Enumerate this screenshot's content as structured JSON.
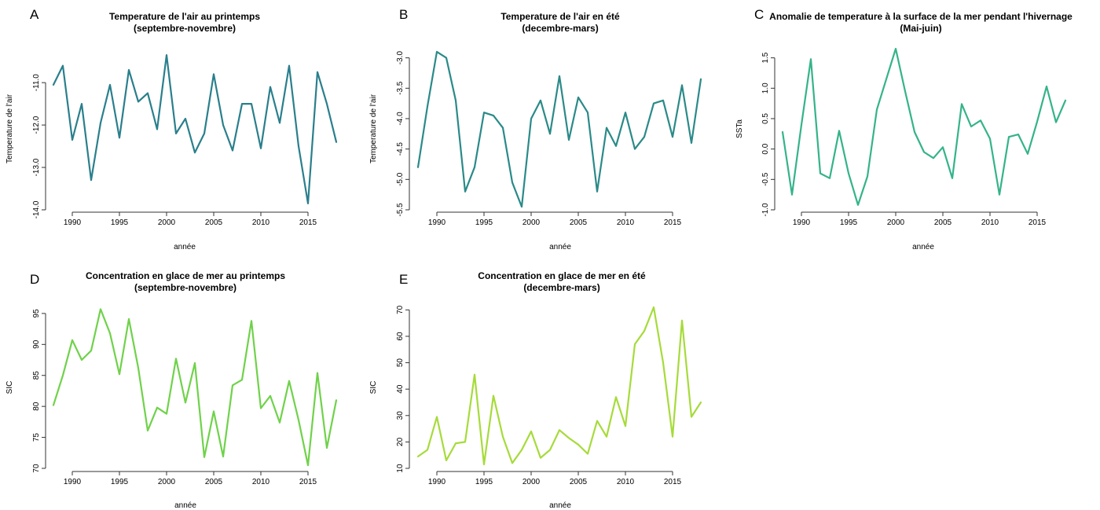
{
  "chart_data": [
    {
      "type": "line",
      "panel": "A",
      "title": "Temperature de l'air au printemps",
      "subtitle": "(septembre-novembre)",
      "xlabel": "année",
      "ylabel": "Temperature de l'air",
      "color": "#2a7f8c",
      "xlim": [
        1988,
        2018
      ],
      "ylim": [
        -14.0,
        -10.2
      ],
      "xticks": [
        1990,
        1995,
        2000,
        2005,
        2010,
        2015
      ],
      "yticks": [
        -14.0,
        -13.0,
        -12.0,
        -11.0
      ],
      "ytick_labels": [
        "-14.0",
        "-13.0",
        "-12.0",
        "-11.0"
      ],
      "x": [
        1988,
        1989,
        1990,
        1991,
        1992,
        1993,
        1994,
        1995,
        1996,
        1997,
        1998,
        1999,
        2000,
        2001,
        2002,
        2003,
        2004,
        2005,
        2006,
        2007,
        2008,
        2009,
        2010,
        2011,
        2012,
        2013,
        2014,
        2015,
        2016,
        2017,
        2018
      ],
      "values": [
        -11.05,
        -10.6,
        -12.35,
        -11.5,
        -13.3,
        -11.95,
        -11.05,
        -12.3,
        -10.7,
        -11.45,
        -11.25,
        -12.1,
        -10.35,
        -12.2,
        -11.85,
        -12.65,
        -12.2,
        -10.8,
        -12.0,
        -12.6,
        -11.5,
        -11.5,
        -12.55,
        -11.1,
        -11.95,
        -10.6,
        -12.5,
        -13.85,
        -10.75,
        -11.5,
        -12.4
      ]
    },
    {
      "type": "line",
      "panel": "B",
      "title": "Temperature de l'air en été",
      "subtitle": "(decembre-mars)",
      "xlabel": "année",
      "ylabel": "Temperature de l'air",
      "color": "#2a8a88",
      "xlim": [
        1988,
        2018
      ],
      "ylim": [
        -5.5,
        -2.85
      ],
      "xticks": [
        1990,
        1995,
        2000,
        2005,
        2010,
        2015
      ],
      "yticks": [
        -5.5,
        -5.0,
        -4.5,
        -4.0,
        -3.5,
        -3.0
      ],
      "ytick_labels": [
        "-5.5",
        "-5.0",
        "-4.5",
        "-4.0",
        "-3.5",
        "-3.0"
      ],
      "x": [
        1988,
        1989,
        1990,
        1991,
        1992,
        1993,
        1994,
        1995,
        1996,
        1997,
        1998,
        1999,
        2000,
        2001,
        2002,
        2003,
        2004,
        2005,
        2006,
        2007,
        2008,
        2009,
        2010,
        2011,
        2012,
        2013,
        2014,
        2015,
        2016,
        2017,
        2018
      ],
      "values": [
        -4.8,
        -3.8,
        -2.9,
        -3.0,
        -3.7,
        -5.2,
        -4.8,
        -3.9,
        -3.95,
        -4.15,
        -5.05,
        -5.45,
        -4.0,
        -3.7,
        -4.25,
        -3.3,
        -4.35,
        -3.65,
        -3.9,
        -5.2,
        -4.15,
        -4.45,
        -3.9,
        -4.5,
        -4.3,
        -3.75,
        -3.7,
        -4.3,
        -3.45,
        -4.4,
        -3.35
      ]
    },
    {
      "type": "line",
      "panel": "C",
      "title": "Anomalie de temperature à la surface de la mer pendant l'hivernage",
      "subtitle": "(Mai-juin)",
      "xlabel": "année",
      "ylabel": "SSTa",
      "color": "#34b38a",
      "xlim": [
        1988,
        2018
      ],
      "ylim": [
        -1.0,
        1.65
      ],
      "xticks": [
        1990,
        1995,
        2000,
        2005,
        2010,
        2015
      ],
      "yticks": [
        -1.0,
        -0.5,
        0.0,
        0.5,
        1.0,
        1.5
      ],
      "ytick_labels": [
        "-1.0",
        "-0.5",
        "0.0",
        "0.5",
        "1.0",
        "1.5"
      ],
      "x": [
        1988,
        1989,
        1990,
        1991,
        1992,
        1993,
        1994,
        1995,
        1996,
        1997,
        1998,
        1999,
        2000,
        2001,
        2002,
        2003,
        2004,
        2005,
        2006,
        2007,
        2008,
        2009,
        2010,
        2011,
        2012,
        2013,
        2014,
        2015,
        2016,
        2017,
        2018
      ],
      "values": [
        0.28,
        -0.75,
        0.4,
        1.48,
        -0.4,
        -0.48,
        0.3,
        -0.4,
        -0.92,
        -0.45,
        0.65,
        1.15,
        1.65,
        0.95,
        0.28,
        -0.05,
        -0.15,
        0.03,
        -0.48,
        0.74,
        0.37,
        0.47,
        0.17,
        -0.75,
        0.2,
        0.24,
        -0.08,
        0.45,
        1.03,
        0.44,
        0.8
      ]
    },
    {
      "type": "line",
      "panel": "D",
      "title": "Concentration en glace de mer au printemps",
      "subtitle": "(septembre-novembre)",
      "xlabel": "année",
      "ylabel": "SIC",
      "color": "#6fd24a",
      "xlim": [
        1988,
        2018
      ],
      "ylim": [
        70,
        96
      ],
      "xticks": [
        1990,
        1995,
        2000,
        2005,
        2010,
        2015
      ],
      "yticks": [
        70,
        75,
        80,
        85,
        90,
        95
      ],
      "ytick_labels": [
        "70",
        "75",
        "80",
        "85",
        "90",
        "95"
      ],
      "x": [
        1988,
        1989,
        1990,
        1991,
        1992,
        1993,
        1994,
        1995,
        1996,
        1997,
        1998,
        1999,
        2000,
        2001,
        2002,
        2003,
        2004,
        2005,
        2006,
        2007,
        2008,
        2009,
        2010,
        2011,
        2012,
        2013,
        2014,
        2015,
        2016,
        2017,
        2018
      ],
      "values": [
        80.2,
        85.0,
        90.7,
        87.5,
        89.0,
        95.7,
        91.8,
        85.2,
        94.1,
        86.2,
        76.1,
        79.8,
        78.8,
        87.7,
        80.6,
        87.0,
        71.8,
        79.2,
        71.9,
        83.4,
        84.3,
        93.8,
        79.7,
        81.7,
        77.4,
        84.1,
        77.8,
        70.5,
        85.4,
        73.3,
        81.0
      ]
    },
    {
      "type": "line",
      "panel": "E",
      "title": "Concentration en glace de mer en été",
      "subtitle": "(decembre-mars)",
      "xlabel": "année",
      "ylabel": "SIC",
      "color": "#a6db3a",
      "xlim": [
        1988,
        2018
      ],
      "ylim": [
        10,
        71
      ],
      "xticks": [
        1990,
        1995,
        2000,
        2005,
        2010,
        2015
      ],
      "yticks": [
        10,
        20,
        30,
        40,
        50,
        60,
        70
      ],
      "ytick_labels": [
        "10",
        "20",
        "30",
        "40",
        "50",
        "60",
        "70"
      ],
      "x": [
        1988,
        1989,
        1990,
        1991,
        1992,
        1993,
        1994,
        1995,
        1996,
        1997,
        1998,
        1999,
        2000,
        2001,
        2002,
        2003,
        2004,
        2005,
        2006,
        2007,
        2008,
        2009,
        2010,
        2011,
        2012,
        2013,
        2014,
        2015,
        2016,
        2017,
        2018
      ],
      "values": [
        14.5,
        17.0,
        29.5,
        13.0,
        19.5,
        20.0,
        45.5,
        11.5,
        37.5,
        22.0,
        12.0,
        17.0,
        24.0,
        14.0,
        17.0,
        24.5,
        21.5,
        19.0,
        15.5,
        28.0,
        22.0,
        37.0,
        26.0,
        57.0,
        62.0,
        71.0,
        50.0,
        22.0,
        66.0,
        29.5,
        35.0
      ]
    }
  ]
}
